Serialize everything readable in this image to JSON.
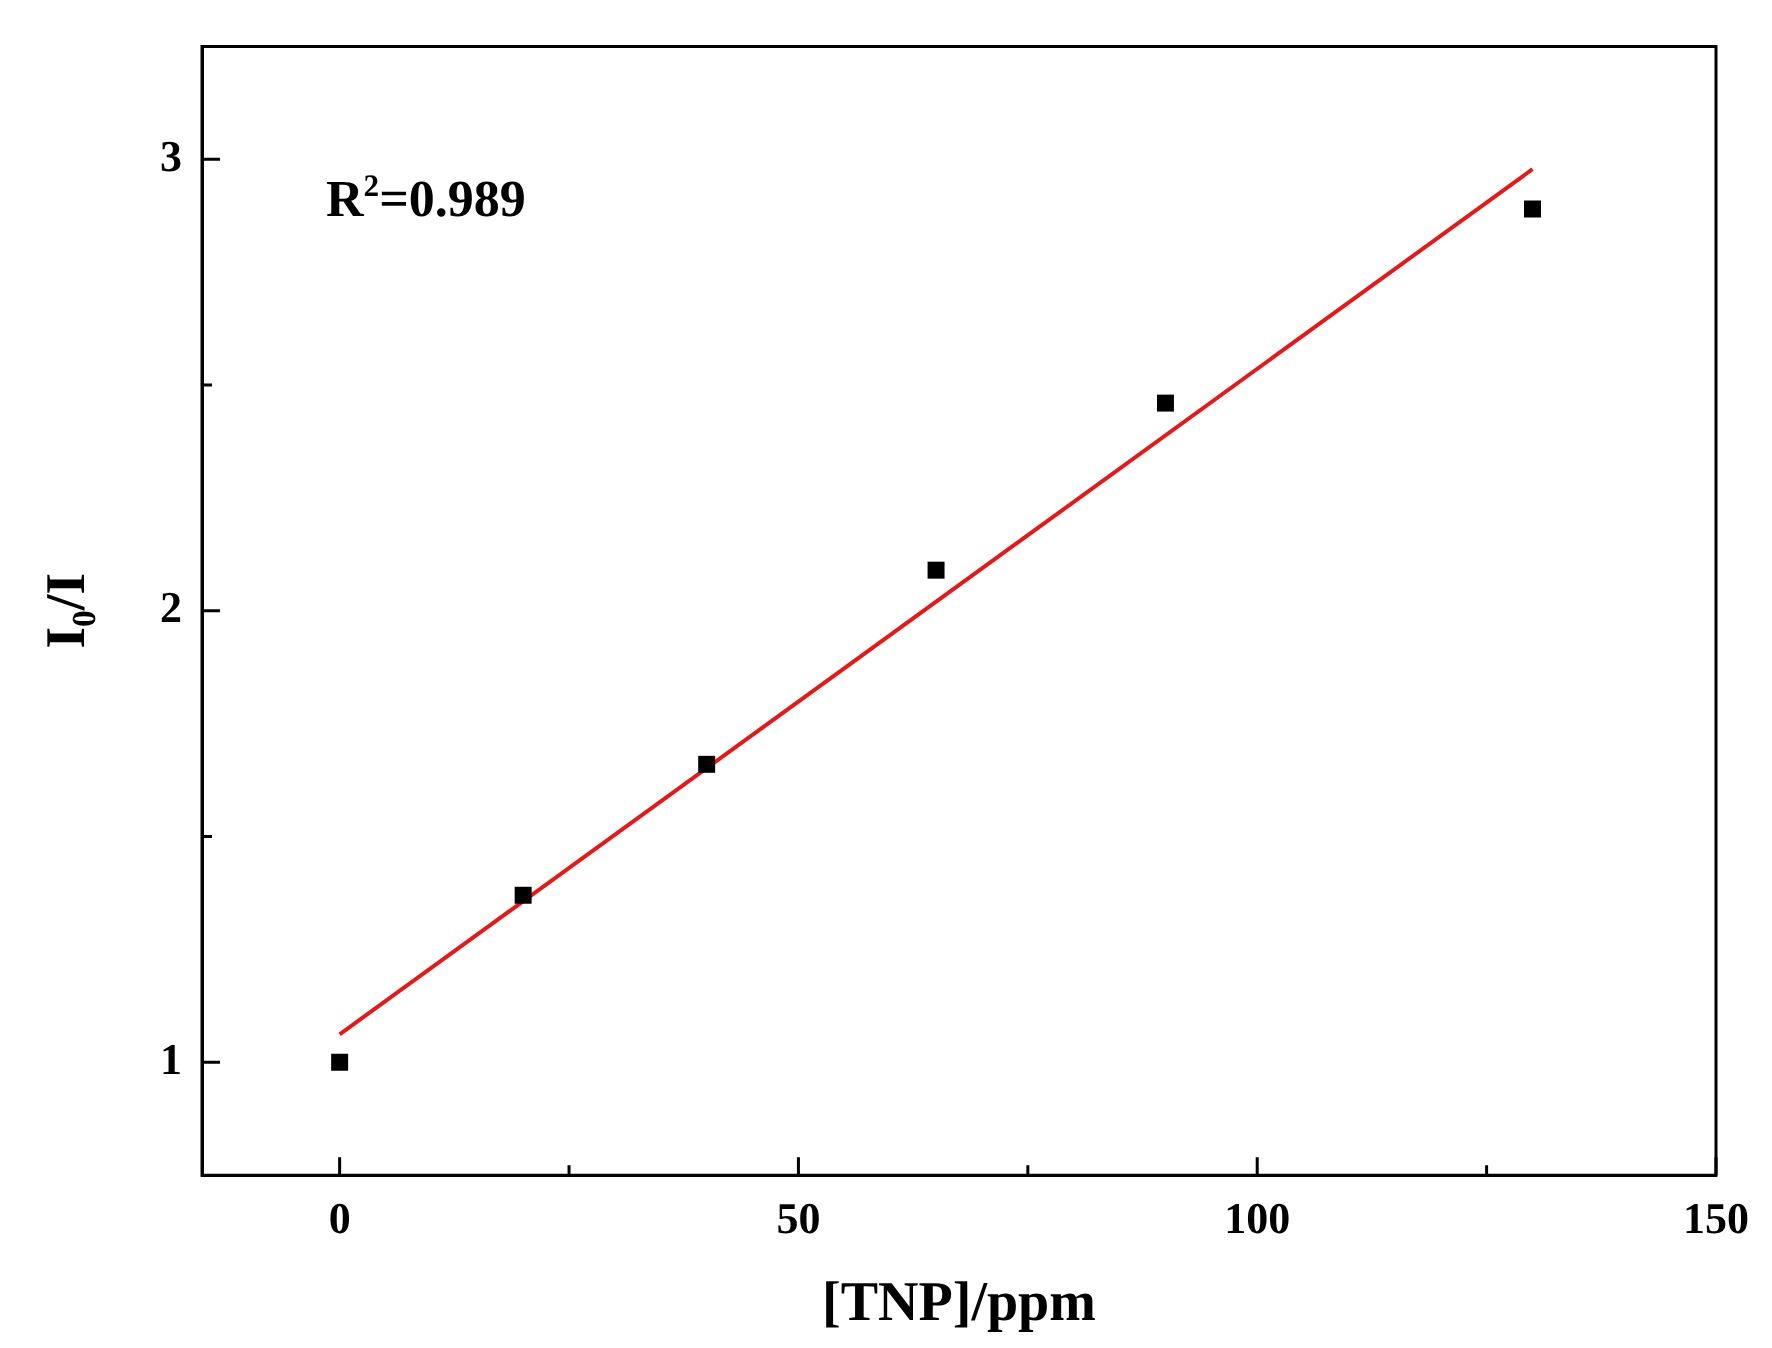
{
  "chart_data": {
    "type": "scatter",
    "xlabel": "[TNP]/ppm",
    "ylabel": "I$_{0}$/I",
    "annotations": [
      "R$^{2}$=0.989"
    ],
    "xlim": [
      -15,
      150
    ],
    "ylim": [
      0.75,
      3.25
    ],
    "xticks": [
      0,
      {
        "value": 25,
        "label": null
      },
      50,
      {
        "value": 75,
        "label": null
      },
      100,
      {
        "value": 125,
        "label": null
      },
      150
    ],
    "yticks": [
      1,
      {
        "value": 1.5,
        "label": null
      },
      2,
      {
        "value": 2.5,
        "label": null
      },
      3
    ],
    "grid": false,
    "legend": false,
    "marker": "square",
    "series": [
      {
        "color": "#000000",
        "x": [
          0,
          20,
          40,
          65,
          90,
          130
        ],
        "values": [
          1.0,
          1.37,
          1.66,
          2.09,
          2.46,
          2.89
        ]
      },
      {
        "type": "line",
        "color": "#e01b1b",
        "line_style": "solid",
        "marker": "none",
        "x": [
          0,
          130
        ],
        "values": [
          1.062,
          2.978
        ]
      }
    ]
  }
}
